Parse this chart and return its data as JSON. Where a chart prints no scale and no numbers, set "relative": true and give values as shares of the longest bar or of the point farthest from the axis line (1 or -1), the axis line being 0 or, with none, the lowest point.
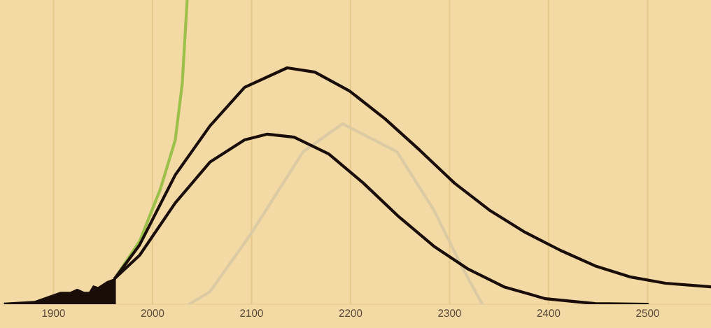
{
  "chart_data": {
    "type": "line",
    "relative": true,
    "xlim": [
      1846,
      2564
    ],
    "xticks": [
      1900,
      2000,
      2100,
      2200,
      2300,
      2400,
      2500
    ],
    "grid": "x",
    "series": [
      {
        "type": "area",
        "color": "#1a0d08",
        "x": [
          1850,
          1881,
          1907,
          1917,
          1924,
          1931,
          1936,
          1940,
          1945,
          1954,
          1963,
          1963
        ],
        "values": [
          0.005,
          0.011,
          0.041,
          0.041,
          0.051,
          0.041,
          0.041,
          0.062,
          0.057,
          0.076,
          0.087,
          0
        ]
      },
      {
        "color": "#dccaa2",
        "x": [
          2037,
          2058,
          2100,
          2152,
          2192,
          2247,
          2284,
          2312,
          2333
        ],
        "values": [
          0,
          0.041,
          0.234,
          0.501,
          0.593,
          0.501,
          0.31,
          0.126,
          0
        ]
      },
      {
        "color": "#9cc04a",
        "x": [
          1962,
          1987,
          2008,
          2023,
          2030,
          2035
        ],
        "values": [
          0.085,
          0.207,
          0.379,
          0.54,
          0.724,
          1.0
        ]
      },
      {
        "color": "#1a0d08",
        "x": [
          1962,
          1987,
          2023,
          2058,
          2093,
          2136,
          2164,
          2199,
          2235,
          2270,
          2305,
          2340,
          2376,
          2412,
          2447,
          2482,
          2518,
          2564
        ],
        "values": [
          0.085,
          0.195,
          0.425,
          0.586,
          0.713,
          0.777,
          0.763,
          0.701,
          0.609,
          0.506,
          0.398,
          0.31,
          0.237,
          0.177,
          0.126,
          0.09,
          0.069,
          0.057
        ]
      },
      {
        "color": "#1a0d08",
        "x": [
          1962,
          1987,
          2023,
          2058,
          2093,
          2116,
          2143,
          2178,
          2213,
          2249,
          2284,
          2319,
          2355,
          2397,
          2447,
          2500
        ],
        "values": [
          0.085,
          0.161,
          0.333,
          0.467,
          0.54,
          0.559,
          0.549,
          0.494,
          0.398,
          0.287,
          0.191,
          0.115,
          0.057,
          0.018,
          0.002,
          0
        ]
      }
    ]
  }
}
